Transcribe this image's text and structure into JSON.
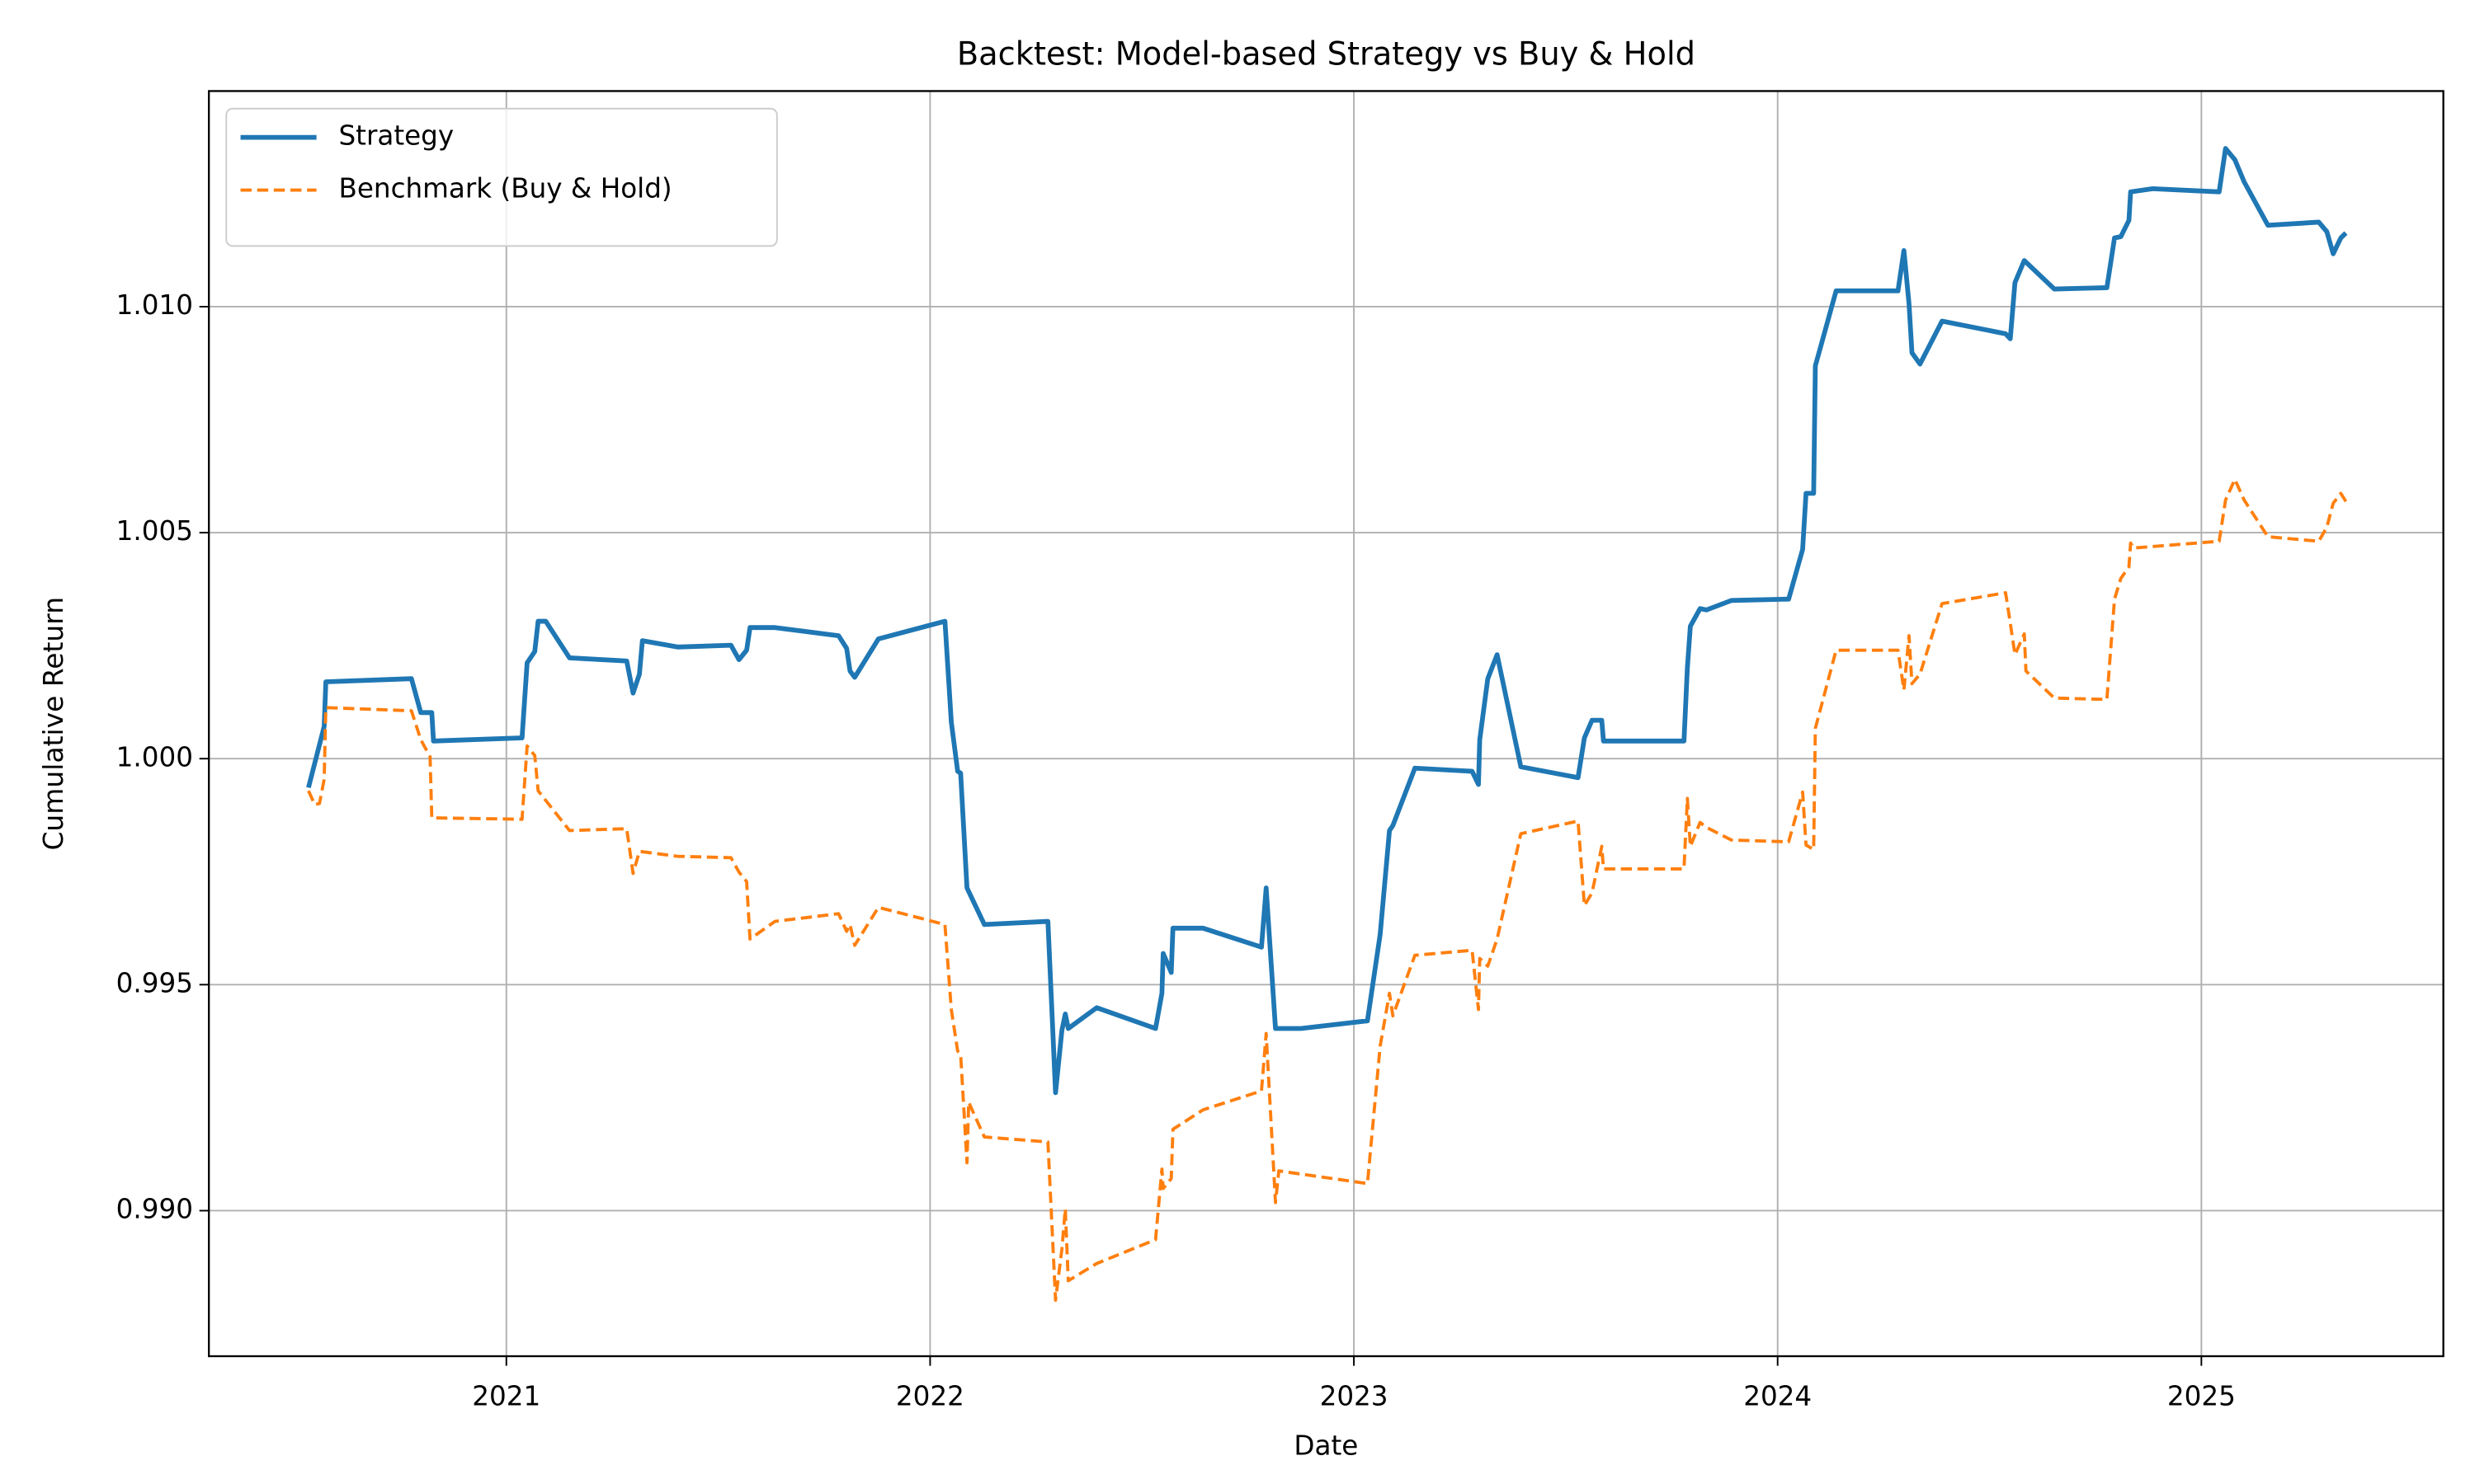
{
  "chart_data": {
    "type": "line",
    "title": "Backtest: Model-based Strategy vs Buy & Hold",
    "x_label": "Date",
    "y_label": "Cumulative Return",
    "xlim": [
      2020.298,
      2025.571
    ],
    "xticks": [
      2021,
      2022,
      2023,
      2024,
      2025
    ],
    "ylim": [
      0.98678,
      1.01477
    ],
    "yticks": [
      {
        "value": 0.99,
        "label": "0.990"
      },
      {
        "value": 0.995,
        "label": "0.995"
      },
      {
        "value": 1.0,
        "label": "1.000"
      },
      {
        "value": 1.005,
        "label": "1.005"
      },
      {
        "value": 1.01,
        "label": "1.010"
      }
    ],
    "grid": true,
    "legend": "upper left",
    "series": [
      {
        "name": "Strategy",
        "color": "#1f77b4",
        "style": "solid",
        "x": [
          2020.533,
          2020.57,
          2020.574,
          2020.776,
          2020.798,
          2020.824,
          2020.828,
          2021.037,
          2021.049,
          2021.067,
          2021.075,
          2021.093,
          2021.149,
          2021.284,
          2021.299,
          2021.314,
          2021.321,
          2021.404,
          2021.53,
          2021.549,
          2021.567,
          2021.575,
          2021.634,
          2021.784,
          2021.803,
          2021.811,
          2021.822,
          2021.878,
          2022.035,
          2022.05,
          2022.065,
          2022.072,
          2022.087,
          2022.128,
          2022.278,
          2022.296,
          2022.311,
          2022.319,
          2022.326,
          2022.393,
          2022.532,
          2022.547,
          2022.55,
          2022.569,
          2022.573,
          2022.644,
          2022.782,
          2022.793,
          2022.815,
          2022.875,
          2023.032,
          2023.062,
          2023.084,
          2023.092,
          2023.144,
          2023.279,
          2023.294,
          2023.297,
          2023.316,
          2023.338,
          2023.394,
          2023.529,
          2023.544,
          2023.562,
          2023.585,
          2023.589,
          2023.779,
          2023.787,
          2023.794,
          2023.817,
          2023.832,
          2023.891,
          2024.026,
          2024.059,
          2024.067,
          2024.085,
          2024.089,
          2024.138,
          2024.284,
          2024.298,
          2024.31,
          2024.317,
          2024.336,
          2024.388,
          2024.538,
          2024.549,
          2024.56,
          2024.582,
          2024.653,
          2024.777,
          2024.795,
          2024.81,
          2024.829,
          2024.833,
          2024.885,
          2025.042,
          2025.057,
          2025.079,
          2025.101,
          2025.157,
          2025.277,
          2025.296,
          2025.311,
          2025.329,
          2025.341
        ],
        "values": [
          0.99936,
          1.00071,
          1.0017,
          1.00177,
          1.00102,
          1.00102,
          1.00039,
          1.00046,
          1.00212,
          1.00237,
          1.00304,
          1.00304,
          1.00223,
          1.00216,
          1.00145,
          1.00187,
          1.00261,
          1.00247,
          1.00251,
          1.00219,
          1.0024,
          1.0029,
          1.0029,
          1.00272,
          1.00244,
          1.00194,
          1.0018,
          1.00265,
          1.00304,
          1.00081,
          0.99972,
          0.99968,
          0.99714,
          0.99633,
          0.9964,
          0.99261,
          0.99399,
          0.99435,
          0.99403,
          0.99449,
          0.99403,
          0.99481,
          0.99569,
          0.99527,
          0.99625,
          0.99625,
          0.99583,
          0.99714,
          0.99403,
          0.99403,
          0.9942,
          0.99611,
          0.99841,
          0.99852,
          0.99979,
          0.99972,
          0.99943,
          1.00042,
          1.00177,
          1.0023,
          0.99982,
          0.99958,
          1.00046,
          1.00085,
          1.00085,
          1.00039,
          1.00039,
          1.00201,
          1.00293,
          1.00332,
          1.00329,
          1.0035,
          1.00353,
          1.00463,
          1.00587,
          1.00587,
          1.00869,
          1.01035,
          1.01035,
          1.01124,
          1.01007,
          1.00898,
          1.00873,
          1.00968,
          1.0094,
          1.00929,
          1.01053,
          1.01102,
          1.01039,
          1.01042,
          1.01152,
          1.01155,
          1.01191,
          1.01254,
          1.01261,
          1.01254,
          1.0135,
          1.01325,
          1.01276,
          1.0118,
          1.01187,
          1.01166,
          1.01117,
          1.01152,
          1.01163
        ]
      },
      {
        "name": "Benchmark (Buy & Hold)",
        "color": "#ff7f0e",
        "style": "dashed",
        "x": [
          2020.533,
          2020.548,
          2020.559,
          2020.57,
          2020.574,
          2020.776,
          2020.798,
          2020.82,
          2020.824,
          2021.037,
          2021.049,
          2021.067,
          2021.075,
          2021.149,
          2021.284,
          2021.299,
          2021.314,
          2021.404,
          2021.53,
          2021.549,
          2021.567,
          2021.575,
          2021.634,
          2021.784,
          2021.803,
          2021.811,
          2021.822,
          2021.878,
          2022.035,
          2022.05,
          2022.065,
          2022.072,
          2022.087,
          2022.091,
          2022.128,
          2022.278,
          2022.296,
          2022.311,
          2022.319,
          2022.326,
          2022.393,
          2022.532,
          2022.547,
          2022.55,
          2022.569,
          2022.573,
          2022.644,
          2022.782,
          2022.793,
          2022.815,
          2022.823,
          2022.875,
          2023.032,
          2023.062,
          2023.084,
          2023.092,
          2023.144,
          2023.279,
          2023.294,
          2023.297,
          2023.316,
          2023.338,
          2023.394,
          2023.529,
          2023.544,
          2023.562,
          2023.585,
          2023.589,
          2023.779,
          2023.787,
          2023.794,
          2023.817,
          2023.832,
          2023.891,
          2024.026,
          2024.059,
          2024.067,
          2024.085,
          2024.089,
          2024.138,
          2024.284,
          2024.298,
          2024.31,
          2024.317,
          2024.336,
          2024.388,
          2024.538,
          2024.549,
          2024.56,
          2024.582,
          2024.586,
          2024.653,
          2024.777,
          2024.795,
          2024.81,
          2024.829,
          2024.833,
          2024.84,
          2025.042,
          2025.057,
          2025.079,
          2025.101,
          2025.157,
          2025.277,
          2025.296,
          2025.311,
          2025.329,
          2025.341
        ],
        "values": [
          0.99929,
          0.99898,
          0.99901,
          0.99954,
          1.00113,
          1.00106,
          1.00042,
          1.00004,
          0.99869,
          0.99866,
          1.00028,
          1.00007,
          0.99929,
          0.99841,
          0.99845,
          0.99746,
          0.99795,
          0.99784,
          0.99781,
          0.99749,
          0.99728,
          0.99601,
          0.9964,
          0.99657,
          0.99618,
          0.99633,
          0.99587,
          0.99671,
          0.99633,
          0.99445,
          0.99353,
          0.99346,
          0.99106,
          0.9924,
          0.99163,
          0.99152,
          0.98802,
          0.98915,
          0.99004,
          0.98845,
          0.98883,
          0.98936,
          0.99092,
          0.99049,
          0.99071,
          0.9918,
          0.99223,
          0.99265,
          0.99392,
          0.99018,
          0.99088,
          0.99081,
          0.9906,
          0.99364,
          0.99481,
          0.99431,
          0.99565,
          0.99576,
          0.99445,
          0.99558,
          0.99541,
          0.99601,
          0.99834,
          0.99862,
          0.99675,
          0.99703,
          0.99806,
          0.99756,
          0.99756,
          0.99912,
          0.99806,
          0.99859,
          0.99848,
          0.9982,
          0.99816,
          0.99926,
          0.99809,
          0.99799,
          1.00067,
          1.0024,
          1.0024,
          1.00152,
          1.00272,
          1.00166,
          1.00187,
          1.00343,
          1.00367,
          1.003,
          1.0023,
          1.00276,
          1.00194,
          1.00134,
          1.00131,
          1.00353,
          1.00399,
          1.00424,
          1.00477,
          1.00466,
          1.00481,
          1.00572,
          1.00618,
          1.00572,
          1.00491,
          1.00481,
          1.00512,
          1.00565,
          1.00587,
          1.00569
        ]
      }
    ]
  }
}
